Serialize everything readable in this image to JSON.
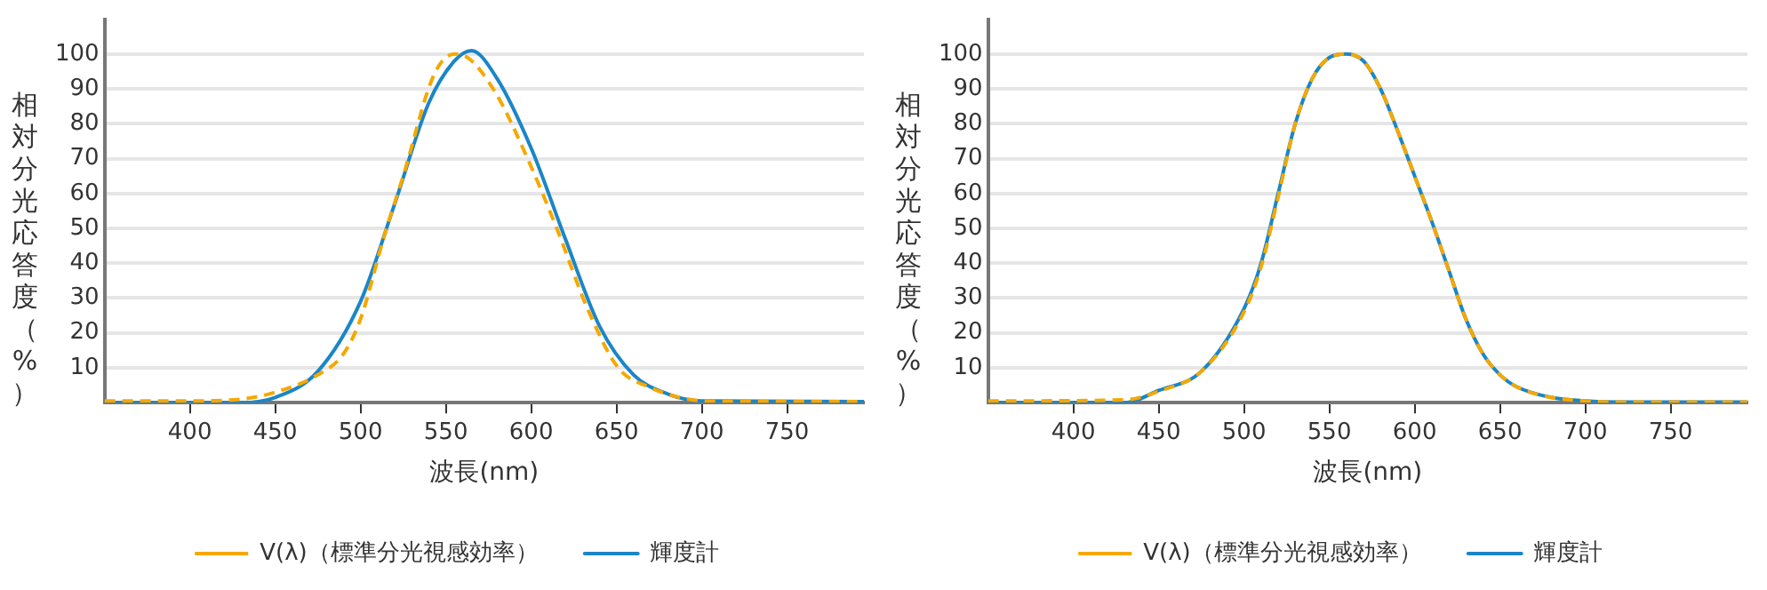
{
  "chart_data": [
    {
      "type": "line",
      "xlabel": "波長(nm)",
      "ylabel": "相対分光応答度（%）",
      "xlim": [
        350,
        795
      ],
      "ylim": [
        0,
        110
      ],
      "xticks": [
        400,
        450,
        500,
        550,
        600,
        650,
        700,
        750
      ],
      "yticks": [
        10,
        20,
        30,
        40,
        50,
        60,
        70,
        80,
        90,
        100
      ],
      "grid": "y",
      "legend": "bottom",
      "marker": "none",
      "series": [
        {
          "name": "V(λ)（標準分光視感効率）",
          "color": "#f5a800",
          "line_style": "dashed",
          "x": [
            350,
            400,
            430,
            450,
            475,
            490,
            500,
            514,
            525,
            543,
            555,
            561,
            579,
            597,
            615,
            633,
            651,
            669,
            687,
            701,
            720,
            795
          ],
          "values": [
            0.5,
            0.5,
            1,
            3,
            8,
            14,
            24,
            48,
            65,
            94,
            100,
            99.5,
            89,
            71,
            50,
            27,
            10,
            4.5,
            1.5,
            0.5,
            0.3,
            0.3
          ]
        },
        {
          "name": "輝度計",
          "color": "#1a86c8",
          "line_style": "solid",
          "x": [
            350,
            430,
            450,
            475,
            500,
            520,
            540,
            555,
            565,
            580,
            600,
            620,
            640,
            660,
            680,
            700,
            795
          ],
          "values": [
            0,
            0,
            1.5,
            9,
            29,
            57,
            86,
            98,
            101,
            93,
            73,
            47,
            22,
            8,
            2.5,
            0.5,
            0.3
          ]
        }
      ]
    },
    {
      "type": "line",
      "xlabel": "波長(nm)",
      "ylabel": "相対分光応答度（%）",
      "xlim": [
        350,
        795
      ],
      "ylim": [
        0,
        110
      ],
      "xticks": [
        400,
        450,
        500,
        550,
        600,
        650,
        700,
        750
      ],
      "yticks": [
        10,
        20,
        30,
        40,
        50,
        60,
        70,
        80,
        90,
        100
      ],
      "grid": "y",
      "legend": "bottom",
      "marker": "none",
      "series": [
        {
          "name": "V(λ)（標準分光視感効率）",
          "color": "#f5a800",
          "line_style": "dashed",
          "x": [
            350,
            430,
            450,
            475,
            500,
            510,
            520,
            530,
            540,
            550,
            560,
            570,
            580,
            590,
            600,
            610,
            620,
            630,
            640,
            650,
            660,
            680,
            700,
            720,
            795
          ],
          "values": [
            0.5,
            0.8,
            3.3,
            9,
            26,
            39,
            59,
            80,
            93,
            99,
            100,
            98,
            90,
            78,
            65,
            52,
            38,
            24,
            14,
            8,
            4.5,
            1.5,
            0.5,
            0.2,
            0.2
          ]
        },
        {
          "name": "輝度計",
          "color": "#1a86c8",
          "line_style": "solid",
          "x": [
            350,
            430,
            450,
            475,
            500,
            510,
            520,
            530,
            540,
            550,
            560,
            570,
            580,
            590,
            600,
            610,
            620,
            630,
            640,
            650,
            660,
            680,
            700,
            720,
            795
          ],
          "values": [
            0,
            0,
            3.5,
            9,
            27,
            40,
            60,
            80,
            93,
            99,
            100,
            98,
            90,
            78,
            65,
            52,
            38,
            24,
            14,
            8,
            4.5,
            1.5,
            0.5,
            0.2,
            0.2
          ]
        }
      ]
    }
  ]
}
